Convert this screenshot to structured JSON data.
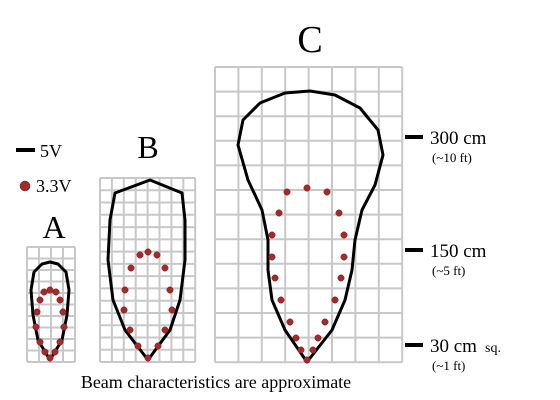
{
  "labels": {
    "a": "A",
    "b": "B",
    "c": "C"
  },
  "legend": {
    "solid": "5V",
    "dots": "3.3V"
  },
  "scale": [
    {
      "main": "300 cm",
      "sub": "(~10 ft)"
    },
    {
      "main": "150 cm",
      "sub": "(~5 ft)"
    },
    {
      "main": "30 cm",
      "extra": "sq.",
      "sub": "(~1 ft)"
    }
  ],
  "caption": "Beam characteristics are approximate"
}
